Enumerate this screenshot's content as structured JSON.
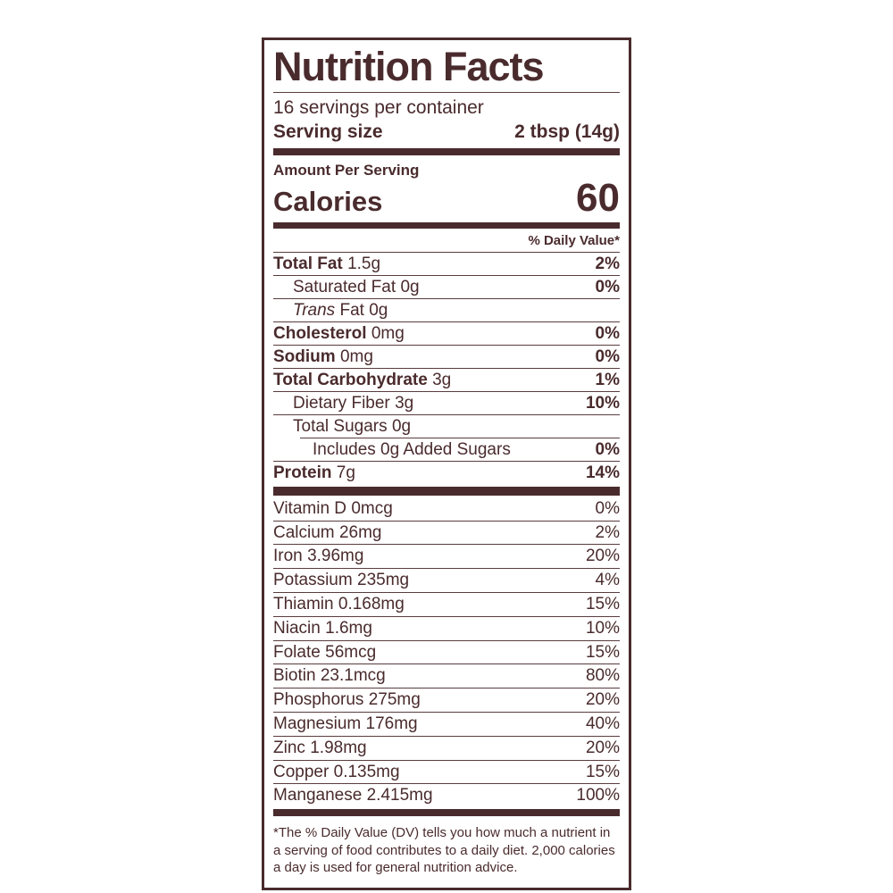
{
  "label": {
    "title": "Nutrition Facts",
    "servings_per_container": "16 servings per container",
    "serving_size_label": "Serving size",
    "serving_size_value": "2 tbsp (14g)",
    "amount_per_serving": "Amount Per Serving",
    "calories_label": "Calories",
    "calories_value": "60",
    "daily_value_header": "% Daily Value*",
    "footnote": "*The % Daily Value (DV) tells you how much a nutrient in a serving of food contributes to a daily diet. 2,000 calories a day is used for general nutrition advice."
  },
  "nutrients": [
    {
      "label": "Total Fat",
      "amount": "1.5g",
      "dv": "2%"
    },
    {
      "label": "Saturated Fat",
      "amount": "0g",
      "dv": "0%"
    },
    {
      "label": "Trans",
      "amount": "Fat 0g",
      "dv": ""
    },
    {
      "label": "Cholesterol",
      "amount": "0mg",
      "dv": "0%"
    },
    {
      "label": "Sodium",
      "amount": "0mg",
      "dv": "0%"
    },
    {
      "label": "Total Carbohydrate",
      "amount": "3g",
      "dv": "1%"
    },
    {
      "label": "Dietary Fiber",
      "amount": "3g",
      "dv": "10%"
    },
    {
      "label": "Total Sugars",
      "amount": "0g",
      "dv": ""
    },
    {
      "label": "Includes 0g Added Sugars",
      "amount": "",
      "dv": "0%"
    },
    {
      "label": "Protein",
      "amount": "7g",
      "dv": "14%"
    }
  ],
  "vitamins": [
    {
      "label": "Vitamin D",
      "amount": "0mcg",
      "dv": "0%"
    },
    {
      "label": "Calcium",
      "amount": "26mg",
      "dv": "2%"
    },
    {
      "label": "Iron",
      "amount": "3.96mg",
      "dv": "20%"
    },
    {
      "label": "Potassium",
      "amount": "235mg",
      "dv": "4%"
    },
    {
      "label": "Thiamin",
      "amount": "0.168mg",
      "dv": "15%"
    },
    {
      "label": "Niacin",
      "amount": "1.6mg",
      "dv": "10%"
    },
    {
      "label": "Folate",
      "amount": "56mcg",
      "dv": "15%"
    },
    {
      "label": "Biotin",
      "amount": "23.1mcg",
      "dv": "80%"
    },
    {
      "label": "Phosphorus",
      "amount": "275mg",
      "dv": "20%"
    },
    {
      "label": "Magnesium",
      "amount": "176mg",
      "dv": "40%"
    },
    {
      "label": "Zinc",
      "amount": "1.98mg",
      "dv": "20%"
    },
    {
      "label": "Copper",
      "amount": "0.135mg",
      "dv": "15%"
    },
    {
      "label": "Manganese",
      "amount": "2.415mg",
      "dv": "100%"
    }
  ],
  "colors": {
    "ink": "#4a2b2d",
    "background": "#ffffff"
  }
}
